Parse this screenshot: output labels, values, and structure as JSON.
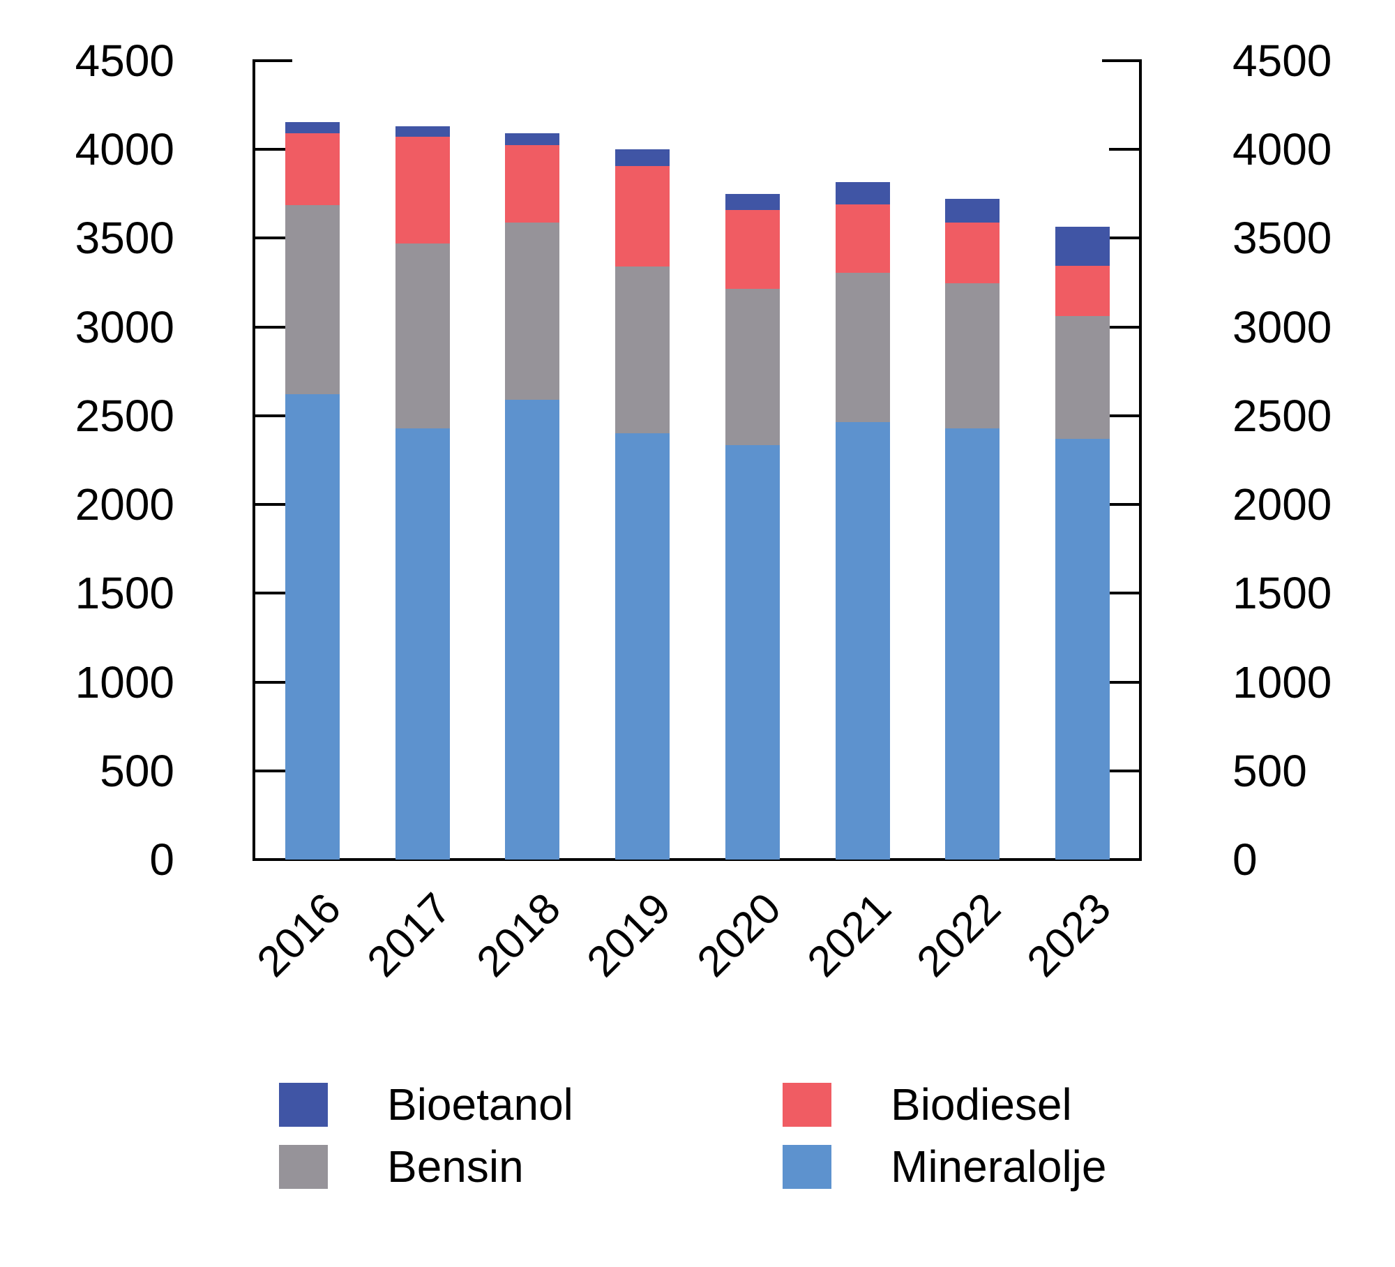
{
  "chart_data": {
    "type": "bar",
    "stacked": true,
    "title": "",
    "xlabel": "",
    "ylabel": "",
    "categories": [
      "2016",
      "2017",
      "2018",
      "2019",
      "2020",
      "2021",
      "2022",
      "2023"
    ],
    "series": [
      {
        "name": "Mineralolje",
        "color": "#5D92CE",
        "values": [
          2620,
          2430,
          2590,
          2400,
          2335,
          2465,
          2430,
          2370
        ]
      },
      {
        "name": "Bensin",
        "color": "#969399",
        "values": [
          1065,
          1040,
          1000,
          940,
          880,
          840,
          815,
          690
        ]
      },
      {
        "name": "Biodiesel",
        "color": "#F05C63",
        "values": [
          405,
          600,
          435,
          565,
          445,
          385,
          345,
          285
        ]
      },
      {
        "name": "Bioetanol",
        "color": "#4055A5",
        "values": [
          65,
          60,
          65,
          95,
          90,
          125,
          130,
          220
        ]
      }
    ],
    "totals": [
      4155,
      4130,
      4090,
      4000,
      3750,
      3815,
      3720,
      3565
    ],
    "y_axis": {
      "min": 0,
      "max": 4500,
      "tick_step": 500,
      "ticks": [
        0,
        500,
        1000,
        1500,
        2000,
        2500,
        3000,
        3500,
        4000,
        4500
      ],
      "tick_labels": [
        "0",
        "500",
        "1000",
        "1500",
        "2000",
        "2500",
        "3000",
        "3500",
        "4000",
        "4500"
      ],
      "shown_on": "both-sides"
    },
    "grid": false,
    "legend": {
      "position": "bottom",
      "items": [
        {
          "label": "Bioetanol",
          "color": "#4055A5"
        },
        {
          "label": "Biodiesel",
          "color": "#F05C63"
        },
        {
          "label": "Bensin",
          "color": "#969399"
        },
        {
          "label": "Mineralolje",
          "color": "#5D92CE"
        }
      ]
    }
  }
}
